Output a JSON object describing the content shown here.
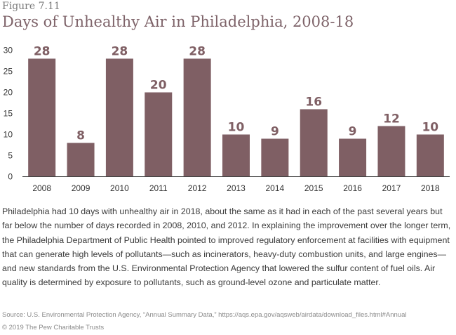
{
  "figure_label": "Figure 7.11",
  "chart_data": {
    "type": "bar",
    "title": "Days of Unhealthy Air in Philadelphia, 2008-18",
    "xlabel": "",
    "ylabel": "",
    "categories": [
      "2008",
      "2009",
      "2010",
      "2011",
      "2012",
      "2013",
      "2014",
      "2015",
      "2016",
      "2017",
      "2018"
    ],
    "values": [
      28,
      8,
      28,
      20,
      28,
      10,
      9,
      16,
      9,
      12,
      10
    ],
    "data_labels": [
      "28",
      "8",
      "28",
      "20",
      "28",
      "10",
      "9",
      "16",
      "9",
      "12",
      "10"
    ],
    "ylim": [
      0,
      30
    ],
    "yticks": [
      "0",
      "5",
      "10",
      "15",
      "20",
      "25",
      "30"
    ],
    "grid": false,
    "legend": "none",
    "colors": {
      "bar": "#7f5f64",
      "axis": "#444444",
      "label": "#7f5f64"
    }
  },
  "description": "Philadelphia had 10 days with unhealthy air in 2018, about the same as it had in each of the past several years but far below the number of days recorded in 2008, 2010, and 2012. In explaining the improvement over the longer term, the Philadelphia Department of Public Health pointed to improved regulatory enforcement at facilities with equipment that can generate high levels of pollutants—such as incinerators, heavy-duty combustion units, and large engines—and new standards from the U.S. Environmental Protection Agency that lowered the sulfur content of fuel oils. Air quality is determined by exposure to pollutants, such as ground-level ozone and particulate matter.",
  "source": "Source: U.S. Environmental Protection Agency, “Annual Summary Data,” https://aqs.epa.gov/aqsweb/airdata/download_files.html#Annual",
  "copyright": "© 2019 The Pew Charitable Trusts"
}
